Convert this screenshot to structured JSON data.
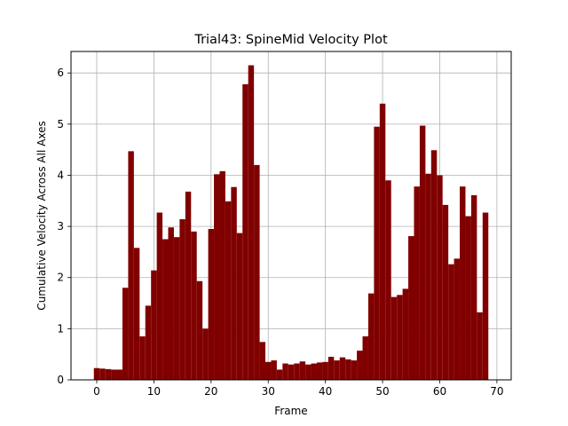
{
  "chart_data": {
    "type": "bar",
    "title": "Trial43: SpineMid Velocity Plot",
    "xlabel": "Frame",
    "ylabel": "Cumulative Velocity Across All Axes",
    "xlim": [
      -4.5,
      72.5
    ],
    "ylim": [
      0,
      6.42
    ],
    "grid": true,
    "bar_color": "#800000",
    "x_ticks": [
      0,
      10,
      20,
      30,
      40,
      50,
      60,
      70
    ],
    "y_ticks": [
      0,
      1,
      2,
      3,
      4,
      5,
      6
    ],
    "x": [
      0,
      1,
      2,
      3,
      4,
      5,
      6,
      7,
      8,
      9,
      10,
      11,
      12,
      13,
      14,
      15,
      16,
      17,
      18,
      19,
      20,
      21,
      22,
      23,
      24,
      25,
      26,
      27,
      28,
      29,
      30,
      31,
      32,
      33,
      34,
      35,
      36,
      37,
      38,
      39,
      40,
      41,
      42,
      43,
      44,
      45,
      46,
      47,
      48,
      49,
      50,
      51,
      52,
      53,
      54,
      55,
      56,
      57,
      58,
      59,
      60,
      61,
      62,
      63,
      64,
      65,
      66,
      67,
      68
    ],
    "values": [
      0.23,
      0.22,
      0.21,
      0.2,
      0.2,
      1.8,
      4.47,
      2.58,
      0.85,
      1.45,
      2.14,
      3.27,
      2.75,
      2.98,
      2.79,
      3.14,
      3.68,
      2.9,
      1.93,
      1.0,
      2.95,
      4.02,
      4.08,
      3.49,
      3.77,
      2.87,
      5.78,
      6.15,
      4.2,
      0.74,
      0.35,
      0.38,
      0.2,
      0.32,
      0.3,
      0.32,
      0.36,
      0.3,
      0.32,
      0.34,
      0.35,
      0.45,
      0.38,
      0.44,
      0.4,
      0.38,
      0.57,
      0.85,
      1.69,
      4.95,
      5.4,
      3.9,
      1.62,
      1.66,
      1.78,
      2.81,
      3.78,
      4.97,
      4.03,
      4.49,
      4.0,
      3.42,
      2.26,
      2.37,
      3.78,
      3.2,
      3.61,
      1.32,
      3.27
    ]
  }
}
